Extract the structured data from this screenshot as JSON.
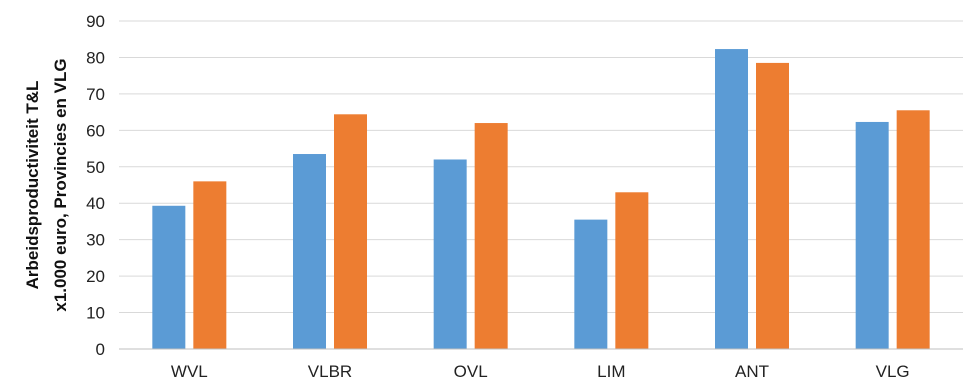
{
  "chart_data": {
    "type": "bar",
    "title": "",
    "xlabel": "",
    "ylabel_lines": [
      "Arbeidsproductiviteit T&L",
      "x1.000 euro, Provincies en VLG"
    ],
    "categories": [
      "WVL",
      "VLBR",
      "OVL",
      "LIM",
      "ANT",
      "VLG"
    ],
    "series": [
      {
        "values": [
          39.3,
          53.5,
          52.0,
          35.5,
          82.3,
          62.3
        ],
        "color": "#5b9bd5"
      },
      {
        "values": [
          46.0,
          64.4,
          62.0,
          43.0,
          78.5,
          65.5
        ],
        "color": "#ed7d31"
      }
    ],
    "ylim": [
      0,
      90
    ],
    "yticks": [
      0,
      10,
      20,
      30,
      40,
      50,
      60,
      70,
      80,
      90
    ],
    "grid": true,
    "legend": "none"
  }
}
